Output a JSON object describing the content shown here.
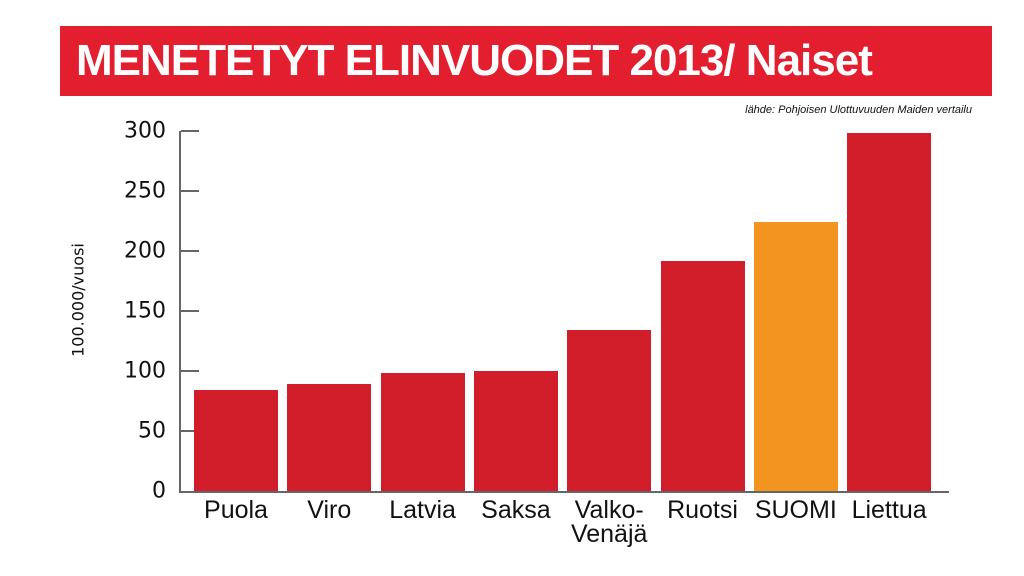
{
  "header": {
    "title": "MENETETYT ELINVUODET 2013/ Naiset",
    "source": "lähde: Pohjoisen Ulottuvuuden Maiden vertailu"
  },
  "colors": {
    "title_bg": "#e31e2e",
    "bar_red": "#d21e2b",
    "bar_highlight": "#f39320"
  },
  "chart_data": {
    "type": "bar",
    "title": "MENETETYT ELINVUODET 2013/ Naiset",
    "subtitle": "lähde: Pohjoisen Ulottuvuuden Maiden vertailu",
    "xlabel": "",
    "ylabel": "100.000/vuosi",
    "ylim": [
      0,
      300
    ],
    "yticks": [
      0,
      50,
      100,
      150,
      200,
      250,
      300
    ],
    "grid": false,
    "legend": null,
    "categories": [
      "Puola",
      "Viro",
      "Latvia",
      "Saksa",
      "Valko-Venäjä",
      "Ruotsi",
      "SUOMI",
      "Liettua"
    ],
    "category_labels": [
      "Puola",
      "Viro",
      "Latvia",
      "Saksa",
      "Valko-\nVenäjä",
      "Ruotsi",
      "SUOMI",
      "Liettua"
    ],
    "values": [
      84,
      89,
      98,
      100,
      134,
      192,
      224,
      298
    ],
    "highlight": "SUOMI"
  }
}
